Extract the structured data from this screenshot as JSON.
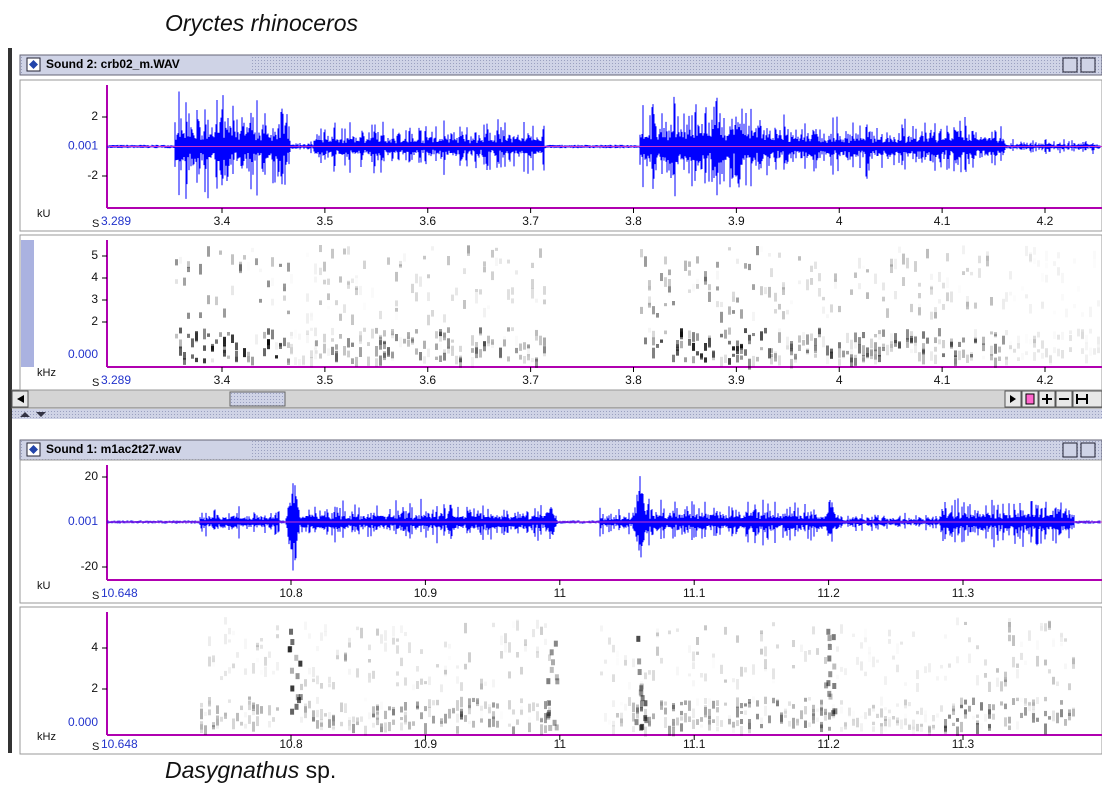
{
  "captions": {
    "top": "Oryctes rhinoceros",
    "bottom_italic": "Dasygnathus",
    "bottom_rest": " sp."
  },
  "windows": [
    {
      "title": "Sound 2: crb02_m.WAV",
      "waveform": {
        "unit": "kU",
        "center_label": "0.001",
        "ticks": [
          2,
          -2
        ]
      },
      "spectrogram": {
        "unit": "kHz",
        "zero_label": "0.000",
        "ticks": [
          5,
          4,
          3,
          2
        ]
      },
      "time": {
        "unit": "S",
        "start": "3.289",
        "ticks": [
          3.4,
          3.5,
          3.6,
          3.7,
          3.8,
          3.9,
          4,
          4.1,
          4.2
        ]
      }
    },
    {
      "title": "Sound 1: m1ac2t27.wav",
      "waveform": {
        "unit": "kU",
        "center_label": "0.001",
        "ticks": [
          20,
          -20
        ]
      },
      "spectrogram": {
        "unit": "kHz",
        "zero_label": "0.000",
        "ticks": [
          4,
          2
        ]
      },
      "time": {
        "unit": "S",
        "start": "10.648",
        "ticks": [
          10.8,
          10.9,
          11,
          11.1,
          11.2,
          11.3
        ]
      }
    }
  ]
}
